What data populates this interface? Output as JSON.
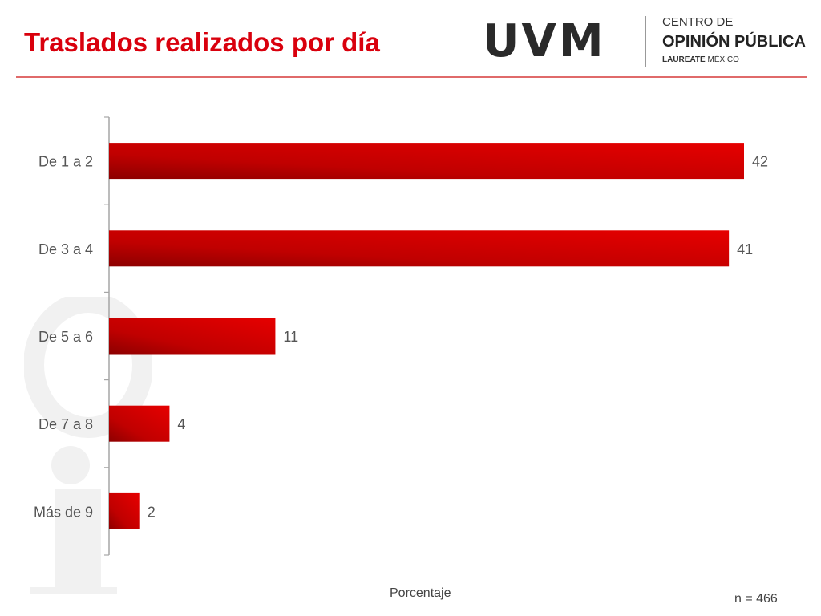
{
  "header": {
    "title": "Traslados realizados por día",
    "logo_main": "UVM",
    "logo_line1": "CENTRO DE",
    "logo_line2": "OPINIÓN PÚBLICA",
    "logo_line3a": "LAUREATE",
    "logo_line3b": "MÉXICO"
  },
  "colors": {
    "accent": "#d9000d",
    "bar_light": "#e60000",
    "bar_dark": "#8c0000"
  },
  "chart_data": {
    "type": "bar",
    "orientation": "horizontal",
    "title": "Traslados realizados por día",
    "categories": [
      "De 1 a 2",
      "De 3 a 4",
      "De 5 a 6",
      "De 7 a 8",
      "Más de 9"
    ],
    "values": [
      42,
      41,
      11,
      4,
      2
    ],
    "data_labels": [
      "42",
      "41",
      "11",
      "4",
      "2"
    ],
    "xlabel": "Porcentaje",
    "ylabel": "",
    "xlim": [
      0,
      42
    ],
    "grid": false,
    "legend": "none",
    "note": "n = 466"
  }
}
